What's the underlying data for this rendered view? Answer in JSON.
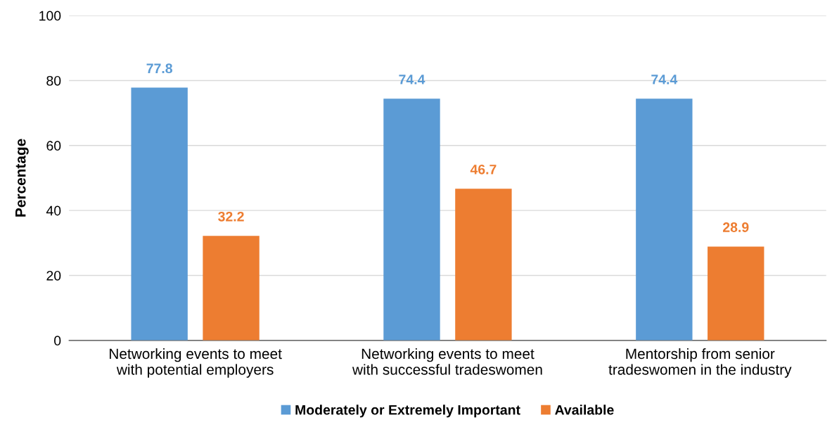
{
  "chart_data": {
    "type": "bar",
    "ylabel": "Percentage",
    "categories": [
      "Networking events to meet\nwith potential employers",
      "Networking events to meet\nwith successful tradeswomen",
      "Mentorship from senior\ntradeswomen in the industry"
    ],
    "series": [
      {
        "name": "Moderately or Extremely Important",
        "color": "#5b9bd5",
        "values": [
          77.8,
          74.4,
          74.4
        ]
      },
      {
        "name": "Available",
        "color": "#ed7d31",
        "values": [
          32.2,
          46.7,
          28.9
        ]
      }
    ],
    "ylim": [
      0,
      100
    ],
    "yticks": [
      0,
      20,
      40,
      60,
      80,
      100
    ],
    "grid": "y",
    "legend": "bottom",
    "data_labels": true
  }
}
